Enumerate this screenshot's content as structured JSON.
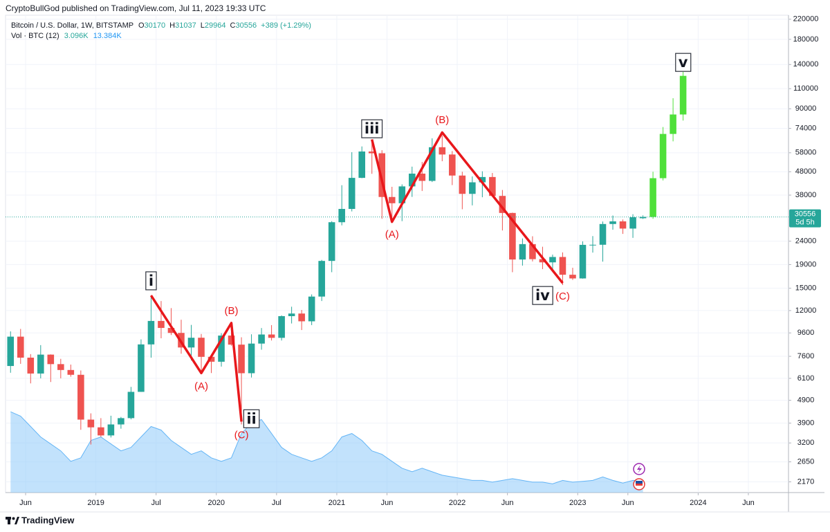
{
  "header": "CryptoBullGod published on TradingView.com, Jul 11, 2023 19:33 UTC",
  "footer": "TradingView",
  "chart_data": {
    "type": "candlestick",
    "symbol": "Bitcoin / U.S. Dollar, 1W, BITSTAMP",
    "ohlc_labels": [
      "O",
      "H",
      "L",
      "C"
    ],
    "change_label": "+389 (+1.29%)",
    "volume_title": "Vol · BTC (12)",
    "volume_label": "3.096K",
    "volume_ma_label": "13.384K",
    "countdown": "5d 5h",
    "log_scale": true,
    "grid": true,
    "up_color": "#26a69a",
    "down_color": "#ef5350",
    "volume_color": "#90caf9",
    "wave_color": "#e8171b",
    "xlim": [
      "2018-04",
      "2024-10"
    ],
    "ylim": [
      1950,
      229000
    ],
    "volume_ylim": [
      0,
      125
    ],
    "yticks": [
      2170,
      2650,
      3200,
      3900,
      4900,
      6100,
      7600,
      9600,
      12000,
      15000,
      19000,
      24000,
      38000,
      48000,
      58000,
      74000,
      90000,
      110000,
      140000,
      180000,
      220000
    ],
    "xticks": [
      {
        "value": "2018-06",
        "label": "Jun"
      },
      {
        "value": "2019-01",
        "label": "2019"
      },
      {
        "value": "2019-07",
        "label": "Jul"
      },
      {
        "value": "2020-01",
        "label": "2020"
      },
      {
        "value": "2020-07",
        "label": "Jul"
      },
      {
        "value": "2021-01",
        "label": "2021"
      },
      {
        "value": "2021-06",
        "label": "Jun"
      },
      {
        "value": "2022-01",
        "label": "2022"
      },
      {
        "value": "2022-06",
        "label": "Jun"
      },
      {
        "value": "2023-01",
        "label": "2023"
      },
      {
        "value": "2023-06",
        "label": "Jun"
      },
      {
        "value": "2024-01",
        "label": "2024"
      },
      {
        "value": "2024-06",
        "label": "Jun"
      }
    ],
    "candles": {
      "x": [
        "2018-04",
        "2018-05",
        "2018-06",
        "2018-07",
        "2018-08",
        "2018-09",
        "2018-10",
        "2018-11",
        "2018-12",
        "2019-01",
        "2019-02",
        "2019-03",
        "2019-04",
        "2019-05",
        "2019-06",
        "2019-07",
        "2019-08",
        "2019-09",
        "2019-10",
        "2019-11",
        "2019-12",
        "2020-01",
        "2020-02",
        "2020-03",
        "2020-04",
        "2020-05",
        "2020-06",
        "2020-07",
        "2020-08",
        "2020-09",
        "2020-10",
        "2020-11",
        "2020-12",
        "2021-01",
        "2021-02",
        "2021-03",
        "2021-04",
        "2021-05",
        "2021-06",
        "2021-07",
        "2021-08",
        "2021-09",
        "2021-10",
        "2021-11",
        "2021-12",
        "2022-01",
        "2022-02",
        "2022-03",
        "2022-04",
        "2022-05",
        "2022-06",
        "2022-07",
        "2022-08",
        "2022-09",
        "2022-10",
        "2022-11",
        "2022-12",
        "2023-01",
        "2023-02",
        "2023-03",
        "2023-04",
        "2023-05",
        "2023-06",
        "2023-07"
      ],
      "open": [
        6900,
        9250,
        7500,
        6400,
        7730,
        7030,
        6630,
        6320,
        4040,
        3740,
        3450,
        3850,
        4100,
        5330,
        8560,
        10820,
        10090,
        9600,
        8300,
        9150,
        7560,
        7200,
        9350,
        8540,
        6420,
        8630,
        9450,
        9140,
        11350,
        11650,
        10780,
        13800,
        19700,
        28990,
        33110,
        45140,
        58740,
        57700,
        37300,
        35040,
        41460,
        47100,
        43800,
        61300,
        57000,
        46200,
        38480,
        43180,
        45530,
        37700,
        31800,
        19980,
        23300,
        20050,
        19420,
        20490,
        17160,
        16540,
        23130,
        23150,
        28480,
        29240,
        27210,
        30170
      ],
      "high": [
        9750,
        9990,
        7770,
        8500,
        7750,
        7410,
        7000,
        6600,
        4300,
        4100,
        4200,
        4150,
        5600,
        9000,
        13880,
        13200,
        12300,
        10950,
        10400,
        9500,
        7750,
        9570,
        10500,
        9190,
        9470,
        10080,
        10380,
        11440,
        12470,
        12070,
        14100,
        19900,
        29300,
        41950,
        58350,
        61780,
        64900,
        59500,
        41300,
        42300,
        50500,
        52900,
        67000,
        69000,
        59000,
        47990,
        45800,
        48200,
        47400,
        40000,
        31900,
        24650,
        25200,
        22700,
        20980,
        21450,
        18400,
        23950,
        25250,
        29200,
        31000,
        29800,
        31400,
        31037
      ],
      "low": [
        6450,
        7050,
        5800,
        6100,
        5880,
        6100,
        6200,
        3650,
        3150,
        3400,
        3380,
        3690,
        4050,
        5330,
        7500,
        9100,
        9400,
        7800,
        7300,
        6550,
        6430,
        6860,
        8450,
        3850,
        6150,
        8120,
        8900,
        8900,
        10550,
        9880,
        10380,
        13200,
        17600,
        28100,
        32300,
        45000,
        47000,
        30000,
        28800,
        29300,
        37330,
        39600,
        43300,
        53300,
        42000,
        33000,
        34300,
        37200,
        37600,
        26700,
        17600,
        18800,
        19600,
        18150,
        18200,
        15480,
        16300,
        16500,
        21400,
        19560,
        26900,
        25800,
        24800,
        29964
      ],
      "close": [
        9250,
        7500,
        6400,
        7730,
        7030,
        6630,
        6320,
        4040,
        3740,
        3450,
        3850,
        4100,
        5330,
        8560,
        10820,
        10090,
        9600,
        8300,
        9150,
        7560,
        7200,
        9350,
        8540,
        6420,
        8630,
        9450,
        9140,
        11350,
        11650,
        10780,
        13800,
        19700,
        28990,
        33110,
        45140,
        58740,
        57700,
        37300,
        35040,
        41460,
        47100,
        43800,
        61300,
        57000,
        46200,
        38480,
        43180,
        45530,
        37700,
        31800,
        19980,
        23300,
        20050,
        19420,
        20490,
        17160,
        16540,
        23130,
        23150,
        28480,
        29240,
        27210,
        30470,
        30556
      ]
    },
    "volume_ma": [
      93,
      88,
      76,
      64,
      56,
      48,
      36,
      40,
      60,
      64,
      56,
      48,
      52,
      64,
      76,
      72,
      60,
      52,
      44,
      48,
      40,
      36,
      40,
      68,
      80,
      84,
      68,
      52,
      44,
      40,
      36,
      40,
      48,
      64,
      68,
      60,
      48,
      44,
      36,
      28,
      24,
      28,
      24,
      20,
      18,
      16,
      14,
      14,
      12,
      14,
      16,
      14,
      12,
      12,
      10,
      14,
      12,
      13,
      14,
      18,
      14,
      11,
      14,
      13.384
    ],
    "projection": {
      "color": "#4fe03a",
      "x": [
        "2023-08",
        "2023-09",
        "2023-10",
        "2023-11"
      ],
      "open": [
        30556,
        45000,
        70000,
        85000
      ],
      "high": [
        48000,
        75000,
        100000,
        130000
      ],
      "low": [
        30000,
        44000,
        65000,
        80000
      ],
      "close": [
        45000,
        70000,
        85000,
        125000
      ]
    },
    "wave_lines": [
      {
        "x": [
          "2019-06",
          "2019-11",
          "2020-02",
          "2020-03"
        ],
        "y": [
          13950,
          6430,
          10600,
          3960
        ]
      },
      {
        "x": [
          "2021-04",
          "2021-06",
          "2021-11",
          "2022-11"
        ],
        "y": [
          66300,
          29100,
          71000,
          15800
        ]
      }
    ],
    "waves": [
      {
        "label": "i",
        "x": "2019-06",
        "y": 16150,
        "boxed": true
      },
      {
        "label": "(A)",
        "x": "2019-11",
        "y": 5600,
        "boxed": false
      },
      {
        "label": "(B)",
        "x": "2020-02",
        "y": 11900,
        "boxed": false
      },
      {
        "label": "(C)",
        "x": "2020-03",
        "y": 3450,
        "boxed": false
      },
      {
        "label": "ii",
        "x": "2020-04",
        "y": 4075,
        "boxed": true
      },
      {
        "label": "iii",
        "x": "2021-04",
        "y": 73700,
        "boxed": true
      },
      {
        "label": "(A)",
        "x": "2021-06",
        "y": 25550,
        "boxed": false
      },
      {
        "label": "(B)",
        "x": "2021-11",
        "y": 80000,
        "boxed": false
      },
      {
        "label": "iv",
        "x": "2022-09",
        "y": 13950,
        "boxed": true
      },
      {
        "label": "(C)",
        "x": "2022-11",
        "y": 13780,
        "boxed": false
      },
      {
        "label": "v",
        "x": "2023-11",
        "y": 143000,
        "boxed": true
      }
    ]
  }
}
